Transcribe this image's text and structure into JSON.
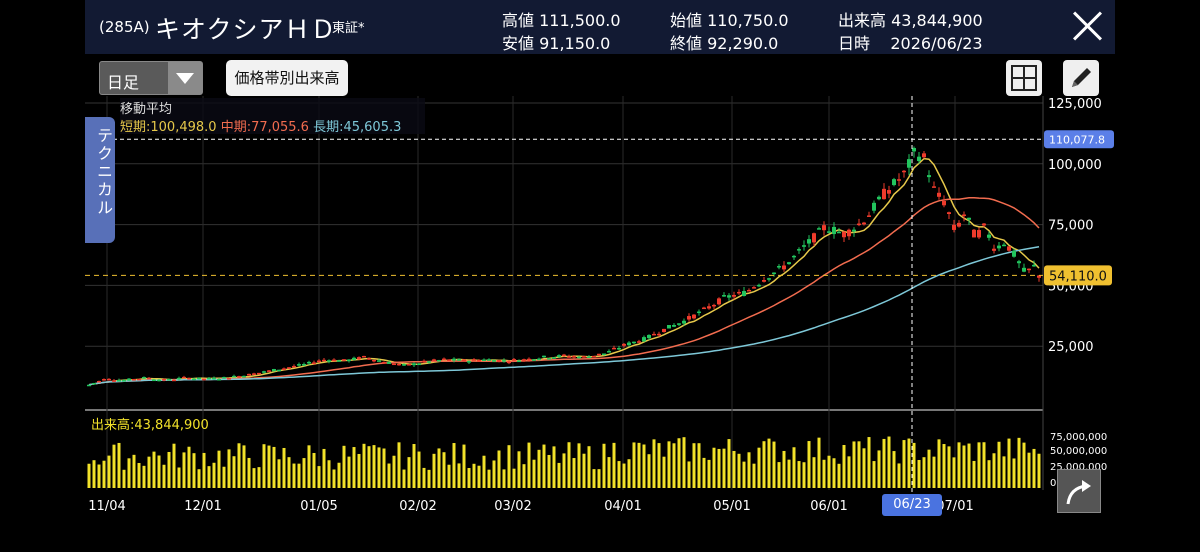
{
  "header": {
    "code": "(285A)",
    "name": "キオクシアＨＤ",
    "market": "東証*",
    "high_label": "高値",
    "high": "111,500.0",
    "low_label": "安値",
    "low": "91,150.0",
    "open_label": "始値",
    "open": "110,750.0",
    "close_label": "終値",
    "close": "92,290.0",
    "volume_label": "出来高",
    "volume": "43,844,900",
    "date_label": "日時",
    "date": "2026/06/23"
  },
  "toolbar": {
    "period": "日足",
    "volume_profile_label": "価格帯別出来高",
    "layout_icon": "grid-icon",
    "draw_icon": "pencil-icon"
  },
  "side_tab": "テクニカル",
  "ma_legend": {
    "title": "移動平均",
    "short": "短期:100,498.0",
    "mid": "中期:77,055.6",
    "long": "長期:45,605.3",
    "short_color": "#e6c84a",
    "mid_color": "#f26c4f",
    "long_color": "#7ec8d8"
  },
  "volume_legend": "出来高:43,844,900",
  "price_axis": [
    "125,000",
    "100,000",
    "75,000",
    "50,000",
    "25,000"
  ],
  "volume_axis": [
    "75,000,000",
    "50,000,000",
    "25,000,000",
    "0"
  ],
  "date_axis": [
    "11/04",
    "12/01",
    "01/05",
    "02/02",
    "03/02",
    "04/01",
    "05/01",
    "06/01",
    "07/01"
  ],
  "crosshair_date": "06/23",
  "crosshair_price_tag": "110,077.8",
  "last_price_tag": "54,110.0",
  "chart_data": {
    "type": "candlestick",
    "price_range": [
      0,
      125000
    ],
    "volume_range": [
      0,
      75000000
    ],
    "x_labels": [
      "11/04",
      "12/01",
      "01/05",
      "02/02",
      "03/02",
      "04/01",
      "05/01",
      "06/01",
      "06/23",
      "07/01"
    ],
    "close_approx": [
      [
        0,
        8500
      ],
      [
        20,
        11500
      ],
      [
        40,
        11000
      ],
      [
        60,
        12000
      ],
      [
        80,
        11000
      ],
      [
        100,
        12000
      ],
      [
        120,
        11500
      ],
      [
        140,
        12000
      ],
      [
        160,
        13000
      ],
      [
        180,
        14500
      ],
      [
        200,
        16000
      ],
      [
        220,
        17500
      ],
      [
        240,
        19500
      ],
      [
        260,
        19000
      ],
      [
        280,
        20500
      ],
      [
        300,
        18500
      ],
      [
        320,
        17000
      ],
      [
        340,
        18500
      ],
      [
        360,
        19500
      ],
      [
        380,
        19000
      ],
      [
        400,
        19500
      ],
      [
        420,
        19000
      ],
      [
        440,
        19500
      ],
      [
        460,
        20500
      ],
      [
        480,
        21000
      ],
      [
        500,
        20500
      ],
      [
        520,
        22000
      ],
      [
        540,
        25500
      ],
      [
        560,
        28000
      ],
      [
        580,
        32000
      ],
      [
        600,
        35500
      ],
      [
        620,
        40000
      ],
      [
        640,
        45000
      ],
      [
        660,
        47000
      ],
      [
        680,
        53000
      ],
      [
        700,
        58000
      ],
      [
        720,
        66000
      ],
      [
        740,
        74000
      ],
      [
        760,
        71000
      ],
      [
        780,
        77000
      ],
      [
        800,
        88000
      ],
      [
        820,
        96000
      ],
      [
        830,
        105000
      ],
      [
        840,
        102000
      ],
      [
        850,
        88000
      ],
      [
        860,
        84000
      ],
      [
        870,
        72000
      ],
      [
        880,
        80000
      ],
      [
        890,
        70000
      ],
      [
        900,
        74000
      ],
      [
        910,
        65000
      ],
      [
        920,
        68000
      ],
      [
        930,
        62000
      ],
      [
        940,
        55000
      ],
      [
        950,
        58000
      ],
      [
        958,
        50000
      ],
      [
        966,
        42000
      ]
    ],
    "moving_averages": [
      {
        "name": "短期",
        "value": 100498.0
      },
      {
        "name": "中期",
        "value": 77055.6
      },
      {
        "name": "長期",
        "value": 45605.3
      }
    ]
  }
}
